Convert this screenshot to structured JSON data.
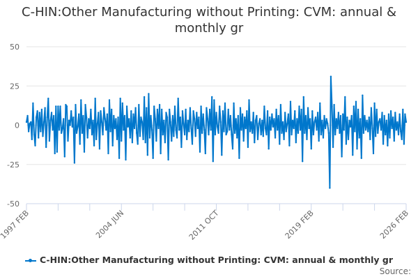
{
  "chart_data": {
    "type": "line",
    "title": "C-HIN:Other Manufacturing without Printing: CVM: annual & monthly gr",
    "xlabel": "",
    "ylabel": "",
    "x_start": "1997 FEB",
    "x_end": "2026 FEB",
    "x_tick_labels": [
      "1997 FEB",
      "2004 JUN",
      "2011 OCT",
      "2019 FEB",
      "2026 FEB"
    ],
    "y_ticks": [
      50,
      25,
      0,
      -25,
      -50
    ],
    "ylim": [
      -50,
      50
    ],
    "grid": true,
    "legend_position": "bottom",
    "series": [
      {
        "name": "C-HIN:Other Manufacturing without Printing: CVM: annual & monthly gr",
        "color": "#0077cc",
        "values": [
          2,
          6,
          -4,
          1,
          2,
          -9,
          14,
          -6,
          -13,
          5,
          9,
          -8,
          8,
          -4,
          10,
          -7,
          2,
          11,
          -14,
          5,
          17,
          -10,
          3,
          8,
          -3,
          6,
          -18,
          12,
          -17,
          12,
          -3,
          12,
          -5,
          -2,
          4,
          -20,
          13,
          12,
          -10,
          3,
          0,
          9,
          -1,
          5,
          -24,
          13,
          -5,
          -1,
          7,
          -12,
          16,
          -5,
          6,
          -17,
          13,
          5,
          -8,
          4,
          -2,
          10,
          -6,
          3,
          -13,
          17,
          -9,
          1,
          8,
          -15,
          9,
          2,
          -6,
          11,
          4,
          -3,
          7,
          -18,
          16,
          -4,
          10,
          -13,
          6,
          -2,
          4,
          -9,
          5,
          -21,
          17,
          -10,
          14,
          -3,
          6,
          -22,
          12,
          -1,
          4,
          -8,
          9,
          -11,
          7,
          -2,
          11,
          -5,
          -12,
          13,
          -7,
          5,
          2,
          -9,
          18,
          -11,
          11,
          -19,
          20,
          -8,
          6,
          -3,
          -21,
          12,
          4,
          -10,
          10,
          -2,
          13,
          -18,
          10,
          -6,
          3,
          -11,
          8,
          5,
          -22,
          10,
          2,
          -10,
          6,
          -7,
          12,
          -3,
          -8,
          17,
          -3,
          5,
          -14,
          9,
          1,
          -6,
          10,
          -9,
          3,
          -4,
          11,
          -2,
          -12,
          9,
          4,
          -7,
          8,
          -2,
          5,
          -17,
          12,
          -5,
          7,
          -3,
          -18,
          11,
          4,
          -6,
          10,
          -3,
          18,
          -23,
          16,
          -6,
          8,
          -1,
          -5,
          12,
          2,
          -19,
          9,
          -4,
          14,
          -6,
          -4,
          10,
          -3,
          6,
          -6,
          -15,
          14,
          -5,
          4,
          -8,
          6,
          -21,
          11,
          -3,
          7,
          -10,
          5,
          -2,
          9,
          -14,
          16,
          -4,
          2,
          -5,
          8,
          -11,
          3,
          6,
          -9,
          1,
          4,
          -6,
          3,
          -7,
          12,
          -2,
          -6,
          9,
          -15,
          5,
          -3,
          7,
          -1,
          4,
          -8,
          10,
          -3,
          6,
          -12,
          13,
          -5,
          2,
          -9,
          8,
          -4,
          1,
          7,
          -13,
          15,
          -6,
          3,
          -2,
          9,
          -11,
          4,
          -5,
          12,
          -3,
          10,
          -23,
          18,
          -5,
          6,
          -9,
          11,
          -2,
          4,
          -15,
          9,
          -6,
          2,
          5,
          -3,
          8,
          -10,
          14,
          -6,
          3,
          -8,
          6,
          -2,
          4,
          1,
          -5,
          -40,
          31,
          12,
          -14,
          13,
          -6,
          4,
          -2,
          8,
          -5,
          6,
          -20,
          7,
          -3,
          18,
          -12,
          5,
          -9,
          3,
          -1,
          6,
          -19,
          12,
          -4,
          15,
          -15,
          10,
          -8,
          4,
          -21,
          19,
          -5,
          6,
          -3,
          3,
          -4,
          5,
          -9,
          11,
          -2,
          -18,
          14,
          -7,
          10,
          -5,
          2,
          4,
          -3,
          8,
          -12,
          6,
          -6,
          3,
          -13,
          7,
          -8,
          9,
          -2,
          5,
          -10,
          8,
          -3,
          2,
          -6,
          7,
          -4,
          -9,
          10,
          -12,
          7,
          2
        ]
      }
    ]
  },
  "source_label": "Source:"
}
